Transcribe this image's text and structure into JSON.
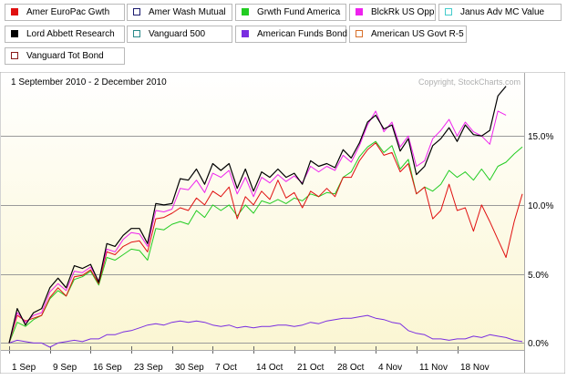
{
  "legend": {
    "items": [
      {
        "name": "Amer EuroPac Gwth",
        "color": "#e01010",
        "fill": true
      },
      {
        "name": "Amer Wash Mutual",
        "color": "#1a1a6e",
        "fill": false
      },
      {
        "name": "Grwth Fund America",
        "color": "#22cc22",
        "fill": true
      },
      {
        "name": "BlckRk US Opp",
        "color": "#ee22ee",
        "fill": true
      },
      {
        "name": "Janus Adv MC Value",
        "color": "#44cccc",
        "fill": false
      },
      {
        "name": "Lord Abbett Research",
        "color": "#000000",
        "fill": true
      },
      {
        "name": "Vanguard 500",
        "color": "#2a8a8a",
        "fill": false
      },
      {
        "name": "American Funds Bond",
        "color": "#7a2ee0",
        "fill": true
      },
      {
        "name": "American US Govt R-5",
        "color": "#d8702a",
        "fill": false
      },
      {
        "name": "Vanguard Tot Bond",
        "color": "#8a1a1a",
        "fill": false
      }
    ]
  },
  "chart_data": {
    "type": "line",
    "date_range": "1 September 2010 - 2 December 2010",
    "watermark": "Copyright, StockCharts.com",
    "y_unit": "%",
    "ylim": [
      -0.5,
      19.5
    ],
    "y_ticks": [
      "0.0%",
      "5.0%",
      "10.0%",
      "15.0%"
    ],
    "y_tick_values": [
      0,
      5,
      10,
      15
    ],
    "x_tick_labels": [
      "1 Sep",
      "9 Sep",
      "16 Sep",
      "23 Sep",
      "30 Sep",
      "7 Oct",
      "14 Oct",
      "21 Oct",
      "28 Oct",
      "4 Nov",
      "11 Nov",
      "18 Nov"
    ],
    "x_tick_index": [
      0,
      5,
      10,
      15,
      20,
      25,
      30,
      35,
      40,
      45,
      50,
      55
    ],
    "grid": true,
    "legend_position": "top",
    "series": [
      {
        "name": "Lord Abbett Research",
        "color": "#000000",
        "width": 1.2,
        "values": [
          0.0,
          2.5,
          1.3,
          2.2,
          2.5,
          4.0,
          4.7,
          4.0,
          5.6,
          5.4,
          5.7,
          4.4,
          7.2,
          7.0,
          7.8,
          8.3,
          8.3,
          7.2,
          10.1,
          10.0,
          10.1,
          11.9,
          11.8,
          12.6,
          11.5,
          13.0,
          12.5,
          13.0,
          11.2,
          12.6,
          11.0,
          12.4,
          12.0,
          12.6,
          12.0,
          12.3,
          11.5,
          13.2,
          12.8,
          13.0,
          12.7,
          14.0,
          13.4,
          14.5,
          16.0,
          16.5,
          15.5,
          15.8,
          13.9,
          14.8,
          12.2,
          12.8,
          14.3,
          14.8,
          15.6,
          14.6,
          15.8,
          15.1,
          15.0,
          15.4,
          17.9,
          18.6
        ]
      },
      {
        "name": "BlckRk US Opp",
        "color": "#ee22ee",
        "width": 1.0,
        "values": [
          0.0,
          2.2,
          1.5,
          2.0,
          2.2,
          3.7,
          4.3,
          3.8,
          5.2,
          5.1,
          5.5,
          4.5,
          6.8,
          6.6,
          7.5,
          8.0,
          7.9,
          7.0,
          9.6,
          9.5,
          9.7,
          11.2,
          11.1,
          11.8,
          10.9,
          12.3,
          12.0,
          12.5,
          10.8,
          12.0,
          10.6,
          12.0,
          11.6,
          12.2,
          11.7,
          12.1,
          11.6,
          12.8,
          12.4,
          12.8,
          12.5,
          13.6,
          13.1,
          14.3,
          15.8,
          16.8,
          15.3,
          16.0,
          14.2,
          15.0,
          12.8,
          13.2,
          14.8,
          15.4,
          16.2,
          15.0,
          16.0,
          15.3,
          15.0,
          14.4,
          16.8,
          16.5
        ]
      },
      {
        "name": "Amer EuroPac Gwth",
        "color": "#e01010",
        "width": 1.0,
        "values": [
          0.0,
          2.0,
          1.6,
          1.8,
          2.0,
          3.3,
          4.0,
          3.4,
          4.8,
          4.9,
          5.3,
          4.3,
          6.6,
          6.4,
          7.0,
          7.3,
          7.4,
          6.6,
          9.0,
          9.1,
          9.4,
          9.8,
          9.6,
          10.5,
          10.0,
          11.0,
          10.6,
          11.3,
          9.0,
          10.6,
          10.0,
          11.0,
          10.4,
          11.8,
          10.5,
          10.9,
          9.8,
          11.0,
          10.6,
          11.2,
          10.6,
          12.0,
          12.0,
          13.2,
          14.0,
          14.5,
          13.6,
          13.8,
          12.4,
          13.0,
          10.8,
          11.3,
          9.0,
          9.6,
          11.5,
          9.6,
          9.8,
          8.1,
          10.0,
          8.8,
          7.5,
          6.2,
          8.8,
          10.8
        ]
      },
      {
        "name": "Grwth Fund America",
        "color": "#22cc22",
        "width": 1.0,
        "values": [
          0.0,
          1.5,
          1.2,
          1.7,
          2.0,
          3.2,
          3.8,
          3.4,
          4.6,
          4.8,
          5.2,
          4.2,
          6.2,
          6.0,
          6.4,
          6.8,
          6.7,
          6.0,
          8.3,
          8.2,
          8.6,
          8.8,
          8.6,
          9.6,
          9.1,
          10.0,
          9.6,
          10.0,
          9.2,
          10.0,
          9.4,
          10.3,
          10.1,
          10.4,
          10.1,
          10.5,
          10.3,
          10.8,
          10.6,
          10.9,
          10.8,
          12.0,
          12.4,
          13.5,
          14.2,
          14.6,
          13.8,
          14.3,
          12.6,
          13.3,
          10.8,
          11.3,
          11.0,
          11.5,
          12.5,
          12.0,
          12.4,
          11.8,
          12.6,
          11.8,
          12.8,
          13.1,
          13.7,
          14.2
        ]
      },
      {
        "name": "American Funds Bond",
        "color": "#7a2ee0",
        "width": 1.0,
        "values": [
          0.0,
          0.2,
          0.1,
          0.0,
          0.0,
          -0.3,
          0.0,
          0.1,
          0.2,
          0.1,
          0.3,
          0.3,
          0.6,
          0.6,
          0.8,
          0.9,
          1.1,
          1.3,
          1.4,
          1.3,
          1.5,
          1.6,
          1.5,
          1.6,
          1.5,
          1.3,
          1.2,
          1.3,
          1.1,
          1.2,
          1.1,
          1.2,
          1.2,
          1.3,
          1.3,
          1.2,
          1.3,
          1.5,
          1.4,
          1.6,
          1.7,
          1.8,
          1.8,
          1.9,
          2.0,
          1.8,
          1.7,
          1.5,
          1.4,
          0.9,
          0.7,
          0.6,
          0.3,
          0.3,
          0.2,
          0.3,
          0.3,
          0.5,
          0.4,
          0.6,
          0.5,
          0.4,
          0.2,
          0.1
        ]
      }
    ]
  }
}
